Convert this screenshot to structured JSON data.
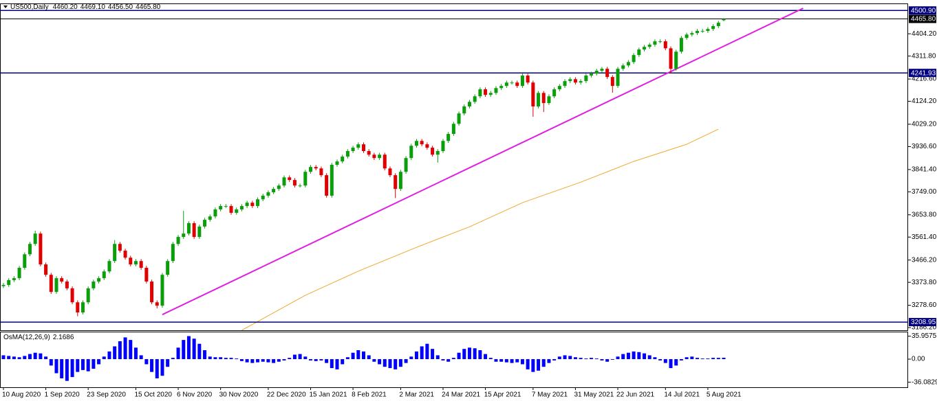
{
  "chart_data": {
    "type": "candlestick",
    "header": {
      "symbol": "US500,Daily",
      "ohlc_labels": [
        "4460.20",
        "4469.10",
        "4456.50",
        "4465.80"
      ]
    },
    "categories": [
      "10 Aug 2020",
      null,
      null,
      null,
      null,
      null,
      null,
      null,
      "1 Sep 2020",
      null,
      null,
      null,
      null,
      null,
      null,
      null,
      "23 Sep 2020",
      null,
      null,
      null,
      null,
      null,
      null,
      null,
      null,
      "15 Oct 2020",
      null,
      null,
      null,
      null,
      null,
      null,
      null,
      "6 Nov 2020",
      null,
      null,
      null,
      null,
      null,
      null,
      null,
      "30 Nov 2020",
      null,
      null,
      null,
      null,
      null,
      null,
      null,
      null,
      "22 Dec 2020",
      null,
      null,
      null,
      null,
      null,
      null,
      null,
      "15 Jan 2021",
      null,
      null,
      null,
      null,
      null,
      null,
      null,
      "8 Feb 2021",
      null,
      null,
      null,
      null,
      null,
      null,
      null,
      null,
      "2 Mar 2021",
      null,
      null,
      null,
      null,
      null,
      null,
      null,
      "24 Mar 2021",
      null,
      null,
      null,
      null,
      null,
      null,
      null,
      "15 Apr 2021",
      null,
      null,
      null,
      null,
      null,
      null,
      null,
      null,
      "7 May 2021",
      null,
      null,
      null,
      null,
      null,
      null,
      null,
      "31 May 2021",
      null,
      null,
      null,
      null,
      null,
      null,
      null,
      "22 Jun 2021",
      null,
      null,
      null,
      null,
      null,
      null,
      null,
      null,
      "14 Jul 2021",
      null,
      null,
      null,
      null,
      null,
      null,
      null,
      "5 Aug 2021",
      null,
      null,
      null
    ],
    "open": [
      3358,
      3363,
      3383,
      3391,
      3434,
      3490,
      3533,
      3576,
      3448,
      3405,
      3334,
      3391,
      3377,
      3349,
      3291,
      3249,
      3291,
      3349,
      3377,
      3391,
      3419,
      3462,
      3533,
      3505,
      3476,
      3448,
      3462,
      3434,
      3377,
      3291,
      3277,
      3405,
      3462,
      3533,
      3562,
      3576,
      3619,
      3562,
      3605,
      3633,
      3647,
      3676,
      3690,
      3690,
      3662,
      3676,
      3690,
      3704,
      3690,
      3718,
      3733,
      3747,
      3761,
      3775,
      3809,
      3798,
      3775,
      3775,
      3832,
      3852,
      3846,
      3818,
      3733,
      3861,
      3875,
      3895,
      3918,
      3932,
      3946,
      3918,
      3903,
      3889,
      3903,
      3846,
      3818,
      3761,
      3832,
      3889,
      3940,
      3960,
      3946,
      3932,
      3903,
      3918,
      3960,
      3989,
      4031,
      4074,
      4103,
      4122,
      4145,
      4174,
      4151,
      4159,
      4179,
      4188,
      4202,
      4202,
      4188,
      4231,
      4202,
      4103,
      4159,
      4117,
      4145,
      4174,
      4188,
      4208,
      4216,
      4202,
      4208,
      4231,
      4239,
      4251,
      4259,
      4225,
      4188,
      4259,
      4273,
      4287,
      4316,
      4339,
      4350,
      4359,
      4373,
      4373,
      4344,
      4259,
      4330,
      4387,
      4401,
      4407,
      4416,
      4416,
      4424,
      4436,
      4460.2
    ],
    "high": [
      3371,
      3391,
      3399,
      3442,
      3498,
      3541,
      3588,
      3584,
      3456,
      3413,
      3399,
      3399,
      3385,
      3357,
      3299,
      3299,
      3357,
      3385,
      3399,
      3427,
      3470,
      3549,
      3541,
      3513,
      3484,
      3470,
      3470,
      3442,
      3385,
      3299,
      3413,
      3470,
      3541,
      3570,
      3670,
      3627,
      3627,
      3613,
      3641,
      3655,
      3684,
      3698,
      3698,
      3698,
      3684,
      3698,
      3712,
      3712,
      3726,
      3741,
      3755,
      3769,
      3783,
      3817,
      3817,
      3806,
      3783,
      3840,
      3860,
      3860,
      3854,
      3826,
      3869,
      3883,
      3903,
      3926,
      3940,
      3954,
      3954,
      3926,
      3911,
      3911,
      3911,
      3854,
      3826,
      3840,
      3897,
      3948,
      3968,
      3968,
      3954,
      3940,
      3926,
      3968,
      3997,
      4039,
      4082,
      4111,
      4130,
      4153,
      4182,
      4182,
      4167,
      4187,
      4196,
      4210,
      4210,
      4210,
      4239,
      4239,
      4210,
      4167,
      4167,
      4153,
      4182,
      4196,
      4216,
      4224,
      4224,
      4216,
      4239,
      4247,
      4259,
      4267,
      4267,
      4233,
      4267,
      4281,
      4295,
      4324,
      4347,
      4358,
      4367,
      4381,
      4381,
      4381,
      4352,
      4338,
      4395,
      4409,
      4415,
      4424,
      4424,
      4432,
      4444,
      4458,
      4469.1
    ],
    "low": [
      3350,
      3355,
      3375,
      3383,
      3426,
      3482,
      3525,
      3440,
      3397,
      3326,
      3326,
      3369,
      3341,
      3283,
      3233,
      3241,
      3283,
      3341,
      3369,
      3383,
      3411,
      3454,
      3497,
      3468,
      3440,
      3440,
      3426,
      3369,
      3283,
      3266,
      3269,
      3397,
      3454,
      3525,
      3554,
      3568,
      3554,
      3554,
      3597,
      3625,
      3639,
      3668,
      3682,
      3654,
      3654,
      3668,
      3682,
      3682,
      3682,
      3710,
      3725,
      3739,
      3753,
      3767,
      3790,
      3767,
      3767,
      3767,
      3824,
      3838,
      3810,
      3725,
      3725,
      3853,
      3867,
      3887,
      3910,
      3924,
      3910,
      3895,
      3881,
      3881,
      3838,
      3810,
      3723,
      3753,
      3824,
      3881,
      3932,
      3938,
      3924,
      3895,
      3870,
      3910,
      3952,
      3981,
      4023,
      4066,
      4095,
      4114,
      4137,
      4143,
      4143,
      4151,
      4171,
      4180,
      4194,
      4180,
      4180,
      4194,
      4060,
      4095,
      4080,
      4109,
      4137,
      4166,
      4180,
      4200,
      4194,
      4194,
      4200,
      4223,
      4231,
      4243,
      4217,
      4160,
      4180,
      4251,
      4265,
      4279,
      4308,
      4331,
      4342,
      4351,
      4365,
      4336,
      4240,
      4251,
      4322,
      4379,
      4393,
      4399,
      4408,
      4408,
      4416,
      4428,
      4456.5
    ],
    "close": [
      3363,
      3383,
      3391,
      3434,
      3490,
      3533,
      3576,
      3448,
      3405,
      3334,
      3391,
      3377,
      3349,
      3291,
      3249,
      3291,
      3349,
      3377,
      3391,
      3419,
      3462,
      3533,
      3505,
      3476,
      3448,
      3462,
      3434,
      3377,
      3291,
      3277,
      3405,
      3462,
      3533,
      3562,
      3576,
      3619,
      3562,
      3605,
      3633,
      3647,
      3676,
      3690,
      3690,
      3662,
      3676,
      3690,
      3704,
      3690,
      3718,
      3733,
      3747,
      3761,
      3775,
      3809,
      3798,
      3775,
      3775,
      3832,
      3852,
      3846,
      3818,
      3733,
      3861,
      3875,
      3895,
      3918,
      3932,
      3946,
      3918,
      3903,
      3889,
      3903,
      3846,
      3818,
      3761,
      3832,
      3889,
      3940,
      3960,
      3946,
      3932,
      3903,
      3918,
      3960,
      3989,
      4031,
      4074,
      4103,
      4122,
      4145,
      4174,
      4151,
      4159,
      4179,
      4188,
      4202,
      4202,
      4188,
      4231,
      4202,
      4103,
      4159,
      4117,
      4145,
      4174,
      4188,
      4208,
      4216,
      4202,
      4208,
      4231,
      4239,
      4251,
      4259,
      4225,
      4188,
      4259,
      4273,
      4287,
      4316,
      4339,
      4350,
      4359,
      4373,
      4373,
      4344,
      4259,
      4330,
      4387,
      4401,
      4407,
      4416,
      4416,
      4424,
      4436,
      4450,
      4465.8
    ],
    "up_color": "#0a9e0a",
    "down_color": "#e00000",
    "ylim": [
      3175,
      4530
    ],
    "yticks": [
      {
        "value": 4404.2,
        "label": "4404.20"
      },
      {
        "value": 4311.8,
        "label": "4311.80"
      },
      {
        "value": 4216.6,
        "label": "4216.60"
      },
      {
        "value": 4124.2,
        "label": "4124.20"
      },
      {
        "value": 4029.2,
        "label": "4029.20"
      },
      {
        "value": 3936.6,
        "label": "3936.60"
      },
      {
        "value": 3841.4,
        "label": "3841.40"
      },
      {
        "value": 3749,
        "label": "3749.00"
      },
      {
        "value": 3653.8,
        "label": "3653.80"
      },
      {
        "value": 3561.4,
        "label": "3561.40"
      },
      {
        "value": 3466.2,
        "label": "3466.20"
      },
      {
        "value": 3373.8,
        "label": "3373.80"
      },
      {
        "value": 3278.6,
        "label": "3278.60"
      },
      {
        "value": 3186.2,
        "label": "3186.20"
      }
    ],
    "levels": [
      {
        "value": 4500.9,
        "label": "4500.90",
        "color": "#000080"
      },
      {
        "value": 4465.8,
        "label": "4465.80",
        "color": "#000000"
      },
      {
        "value": 4241.93,
        "label": "4241.93",
        "color": "#000080"
      },
      {
        "value": 3208.95,
        "label": "3208.95",
        "color": "#000080"
      }
    ],
    "trendline": {
      "color": "#e020e0",
      "x": [
        30,
        151
      ],
      "values": [
        3240,
        4510
      ]
    },
    "moving_average": {
      "color": "#f0a830",
      "x": [
        45,
        57,
        67,
        78,
        88,
        98,
        109,
        119,
        129,
        135
      ],
      "values": [
        3175,
        3320,
        3420,
        3519,
        3604,
        3704,
        3789,
        3875,
        3946,
        4009
      ]
    },
    "indicator": {
      "type": "histogram",
      "title": "OsMA(12,26,9)",
      "color": "#0000ff",
      "values": [
        6,
        5,
        4,
        3,
        5,
        8,
        10,
        9,
        4,
        -10,
        -22,
        -30,
        -34,
        -28,
        -20,
        -17,
        -19,
        -15,
        -8,
        4,
        12,
        20,
        28,
        34,
        30,
        18,
        6,
        -8,
        -20,
        -30,
        -26,
        -12,
        2,
        18,
        30,
        36,
        32,
        24,
        14,
        4,
        3,
        3,
        2,
        2,
        1,
        -3,
        -5,
        -6,
        -5,
        -4,
        -5,
        -6,
        -4,
        -2,
        2,
        7,
        8,
        4,
        -2,
        -3,
        -2,
        -6,
        -14,
        -16,
        -8,
        3,
        10,
        14,
        12,
        6,
        -4,
        -8,
        -12,
        -14,
        -16,
        -12,
        -6,
        4,
        12,
        20,
        24,
        16,
        6,
        -2,
        -4,
        2,
        10,
        16,
        18,
        17,
        14,
        8,
        2,
        -4,
        -4,
        -5,
        -6,
        -5,
        -8,
        -16,
        -20,
        -18,
        -12,
        -6,
        -2,
        4,
        6,
        5,
        3,
        2,
        1,
        2,
        1,
        -2,
        -4,
        -1,
        4,
        8,
        10,
        12,
        11,
        9,
        6,
        3,
        -2,
        -6,
        -14,
        -10,
        -2,
        3,
        4,
        2,
        1,
        1,
        2,
        2,
        2.1686
      ],
      "ylim": [
        -44,
        43
      ],
      "yticks": [
        35.9575,
        {
          "value": 0,
          "label": "0.00"
        },
        -36.0829
      ]
    }
  }
}
